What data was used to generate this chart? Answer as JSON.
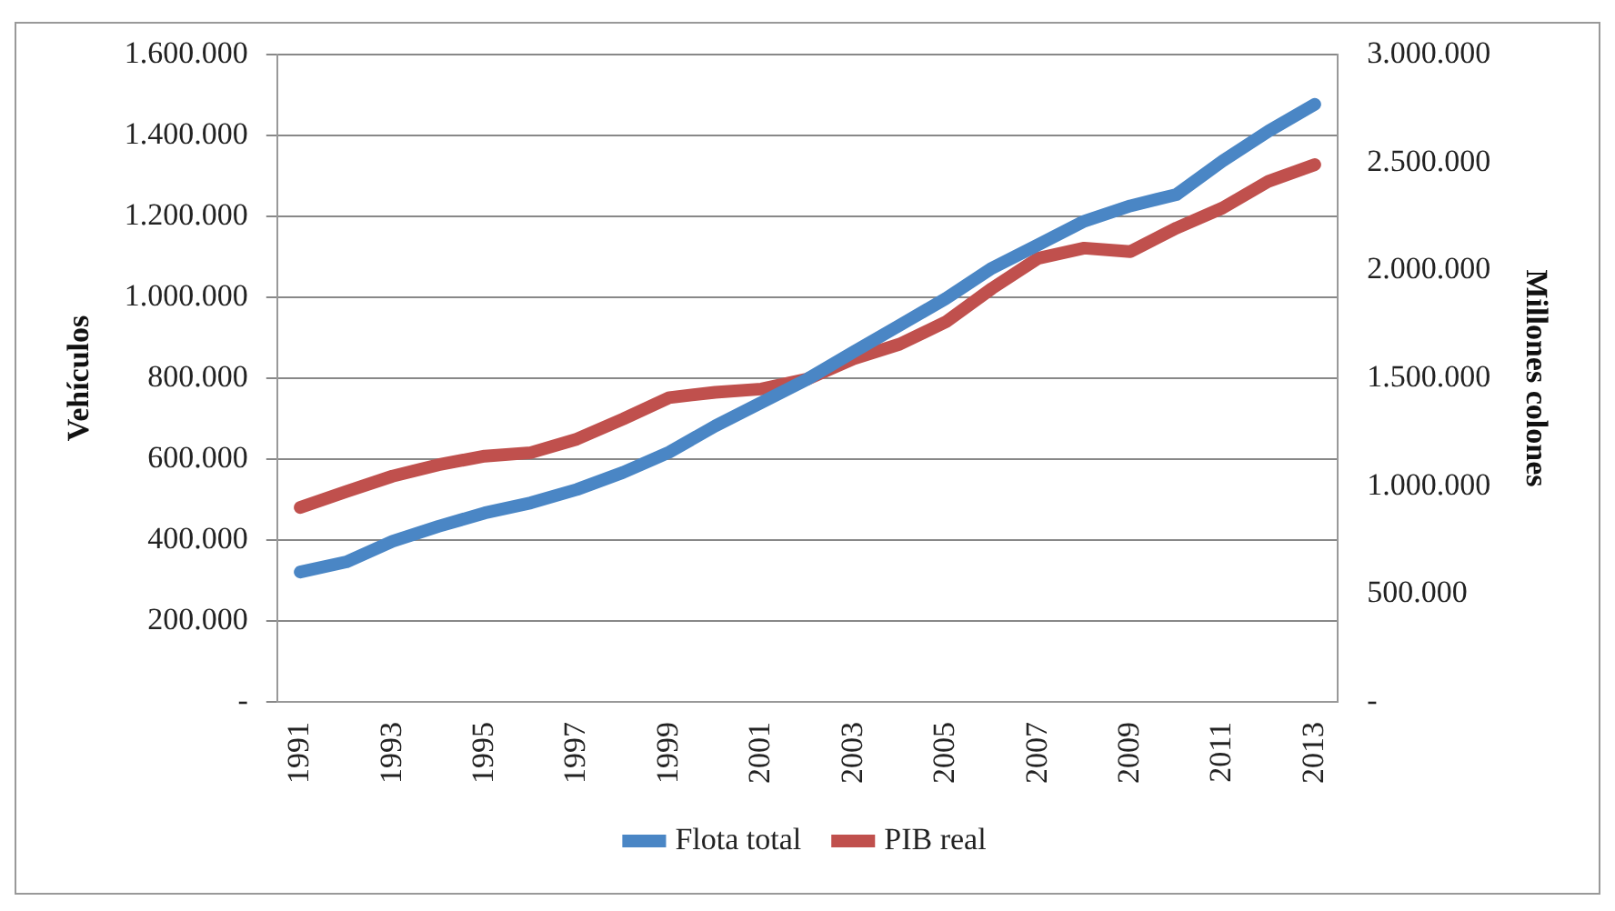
{
  "chart_data": {
    "type": "line",
    "ylabel": "Vehículos",
    "y2label": "Millones colones",
    "categories": [
      "1991",
      null,
      "1993",
      null,
      "1995",
      null,
      "1997",
      null,
      "1999",
      null,
      "2001",
      null,
      "2003",
      null,
      "2005",
      null,
      "2007",
      null,
      "2009",
      null,
      "2011",
      null,
      "2013"
    ],
    "series": [
      {
        "name": "Flota total",
        "color": "#4a86c5",
        "values": [
          321000,
          346000,
          397000,
          434000,
          467000,
          492000,
          525000,
          567000,
          617000,
          682000,
          740000,
          798000,
          865000,
          931000,
          997000,
          1072000,
          1130000,
          1188000,
          1226000,
          1254000,
          1337000,
          1411000,
          1477000
        ]
      },
      {
        "name": "PIB real",
        "color": "#c0504d",
        "axis": "y2",
        "values": [
          901000,
          975000,
          1046000,
          1099000,
          1139000,
          1155000,
          1218000,
          1311000,
          1410000,
          1435000,
          1450000,
          1497000,
          1590000,
          1658000,
          1761000,
          1916000,
          2056000,
          2103000,
          2087000,
          2196000,
          2289000,
          2413000,
          2490000
        ]
      }
    ],
    "ylim": [
      0,
      1600000
    ],
    "yticks": [
      {
        "value": 0,
        "label": "-"
      },
      {
        "value": 200000,
        "label": "200.000"
      },
      {
        "value": 400000,
        "label": "400.000"
      },
      {
        "value": 600000,
        "label": "600.000"
      },
      {
        "value": 800000,
        "label": "800.000"
      },
      {
        "value": 1000000,
        "label": "1.000.000"
      },
      {
        "value": 1200000,
        "label": "1.200.000"
      },
      {
        "value": 1400000,
        "label": "1.400.000"
      },
      {
        "value": 1600000,
        "label": "1.600.000"
      }
    ],
    "y2lim": [
      0,
      3000000
    ],
    "y2ticks": [
      {
        "value": 0,
        "label": "-"
      },
      {
        "value": 500000,
        "label": "500.000"
      },
      {
        "value": 1000000,
        "label": "1.000.000"
      },
      {
        "value": 1500000,
        "label": "1.500.000"
      },
      {
        "value": 2000000,
        "label": "2.000.000"
      },
      {
        "value": 2500000,
        "label": "2.500.000"
      },
      {
        "value": 3000000,
        "label": "3.000.000"
      }
    ],
    "grid": "y",
    "legend": "bottom",
    "marker": "none",
    "line_style": "solid"
  }
}
